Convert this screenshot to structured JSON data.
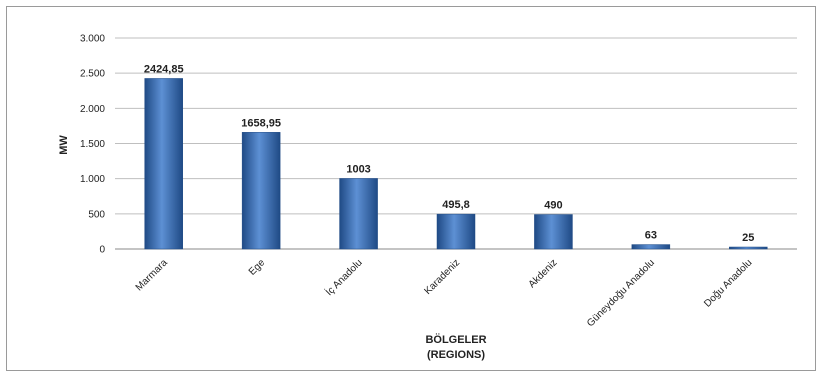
{
  "chart_data": {
    "type": "bar",
    "categories": [
      "Marmara",
      "Ege",
      "İç Anadolu",
      "Karadeniz",
      "Akdeniz",
      "Güneydoğu Anadolu",
      "Doğu Anadolu"
    ],
    "values": [
      2424.85,
      1658.95,
      1003,
      495.8,
      490,
      63,
      25
    ],
    "data_labels": [
      "2424,85",
      "1658,95",
      "1003",
      "495,8",
      "490",
      "63",
      "25"
    ],
    "ylim": [
      0,
      3000
    ],
    "yticks": [
      0,
      500,
      1000,
      1500,
      2000,
      2500,
      3000
    ],
    "ytick_labels": [
      "0",
      "500",
      "1.000",
      "1.500",
      "2.000",
      "2.500",
      "3.000"
    ],
    "ylabel": "MW",
    "xlabel_line1": "BÖLGELER",
    "xlabel_line2": "(REGIONS)",
    "grid": true,
    "legend": "none",
    "bar_color": "#3a6fb5",
    "bar_dark": "#1f4a85",
    "bar_light": "#5d90d4",
    "grid_color": "#bfbfbf"
  }
}
